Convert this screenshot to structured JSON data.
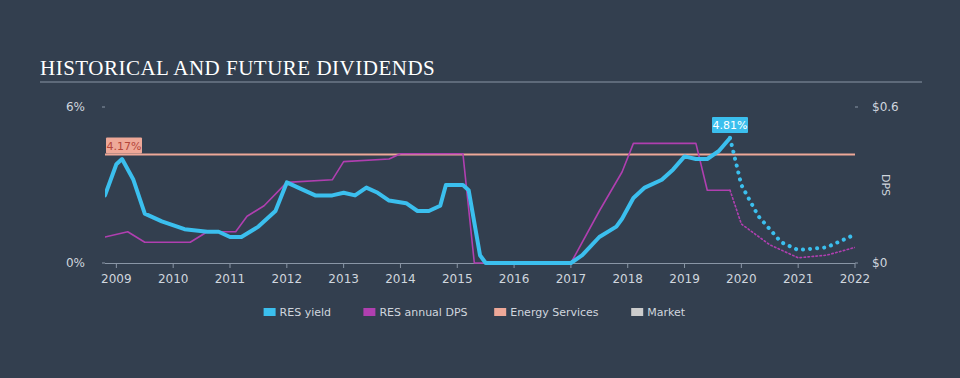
{
  "chart_data": {
    "type": "line",
    "title": "HISTORICAL AND FUTURE DIVIDENDS",
    "xlim": [
      2008.8,
      2022
    ],
    "xticks": [
      2009,
      2010,
      2011,
      2012,
      2013,
      2014,
      2015,
      2016,
      2017,
      2018,
      2019,
      2020,
      2021,
      2022
    ],
    "ylim": [
      0,
      6
    ],
    "yticks": [
      {
        "value": 0,
        "label": "0%"
      },
      {
        "value": 6,
        "label": "6%"
      }
    ],
    "y2lim": [
      0,
      0.6
    ],
    "y2ticks": [
      {
        "value": 0,
        "label": "$0"
      },
      {
        "value": 0.6,
        "label": "$0.6"
      }
    ],
    "y2_label": "DPS",
    "grid": false,
    "legend": "bottom",
    "series": [
      {
        "name": "RES yield",
        "color": "#3bbfee",
        "line_style": "solid",
        "x": [
          2008.8,
          2009.0,
          2009.1,
          2009.3,
          2009.5,
          2009.8,
          2010.2,
          2010.6,
          2010.8,
          2011.0,
          2011.2,
          2011.5,
          2011.8,
          2012.0,
          2012.2,
          2012.5,
          2012.8,
          2013.0,
          2013.2,
          2013.4,
          2013.6,
          2013.8,
          2014.1,
          2014.3,
          2014.5,
          2014.7,
          2014.8,
          2015.1,
          2015.2,
          2015.4,
          2015.5,
          2016.0,
          2017.0,
          2017.2,
          2017.5,
          2017.8,
          2017.9,
          2018.1,
          2018.3,
          2018.6,
          2018.8,
          2019.0,
          2019.2,
          2019.4,
          2019.6,
          2019.8
        ],
        "values": [
          2.6,
          3.8,
          4.0,
          3.2,
          1.9,
          1.6,
          1.3,
          1.2,
          1.2,
          1.0,
          1.0,
          1.4,
          2.0,
          3.1,
          2.9,
          2.6,
          2.6,
          2.7,
          2.6,
          2.9,
          2.7,
          2.4,
          2.3,
          2.0,
          2.0,
          2.2,
          3.0,
          3.0,
          2.8,
          0.3,
          0,
          0,
          0,
          0.3,
          1.0,
          1.4,
          1.7,
          2.5,
          2.9,
          3.2,
          3.6,
          4.1,
          4.0,
          4.0,
          4.3,
          4.81
        ],
        "value_labels": [
          null,
          null,
          null,
          null,
          null,
          null,
          null,
          null,
          null,
          null,
          null,
          null,
          null,
          null,
          null,
          null,
          null,
          null,
          null,
          null,
          null,
          null,
          null,
          null,
          null,
          null,
          null,
          null,
          null,
          null,
          null,
          null,
          null,
          null,
          null,
          null,
          null,
          null,
          null,
          null,
          null,
          null,
          null,
          null,
          null,
          "4.81%"
        ]
      },
      {
        "name": "RES yield",
        "color": "#3bbfee",
        "line_style": "dotted",
        "x": [
          2019.8,
          2020.0,
          2020.3,
          2020.7,
          2021.0,
          2021.5,
          2022.0
        ],
        "values": [
          4.81,
          3.0,
          1.8,
          0.8,
          0.5,
          0.6,
          1.1
        ]
      },
      {
        "name": "RES annual DPS",
        "color": "#b03fb0",
        "line_style": "solid",
        "axis": "y2",
        "x": [
          2008.8,
          2009.2,
          2009.5,
          2010.3,
          2010.6,
          2011.1,
          2011.3,
          2011.6,
          2012.0,
          2012.8,
          2013.0,
          2013.8,
          2014.0,
          2015.1,
          2015.3,
          2017.0,
          2017.5,
          2017.9,
          2018.1,
          2019.2,
          2019.4,
          2019.8
        ],
        "values": [
          0.1,
          0.12,
          0.08,
          0.08,
          0.12,
          0.12,
          0.18,
          0.22,
          0.31,
          0.32,
          0.39,
          0.4,
          0.42,
          0.42,
          0,
          0,
          0.2,
          0.35,
          0.46,
          0.46,
          0.28,
          0.28
        ]
      },
      {
        "name": "RES annual DPS",
        "color": "#b03fb0",
        "line_style": "dotted",
        "axis": "y2",
        "x": [
          2019.8,
          2020.0,
          2020.5,
          2021.0,
          2021.5,
          2022.0
        ],
        "values": [
          0.28,
          0.15,
          0.07,
          0.02,
          0.03,
          0.06
        ]
      },
      {
        "name": "Energy Services",
        "color": "#eea898",
        "line_style": "solid",
        "x": [
          2008.8,
          2022
        ],
        "values": [
          4.17,
          4.17
        ],
        "value_labels": [
          "4.17%",
          null
        ]
      },
      {
        "name": "Market",
        "color": "#cccccc",
        "line_style": "solid",
        "x": [],
        "values": []
      }
    ]
  }
}
